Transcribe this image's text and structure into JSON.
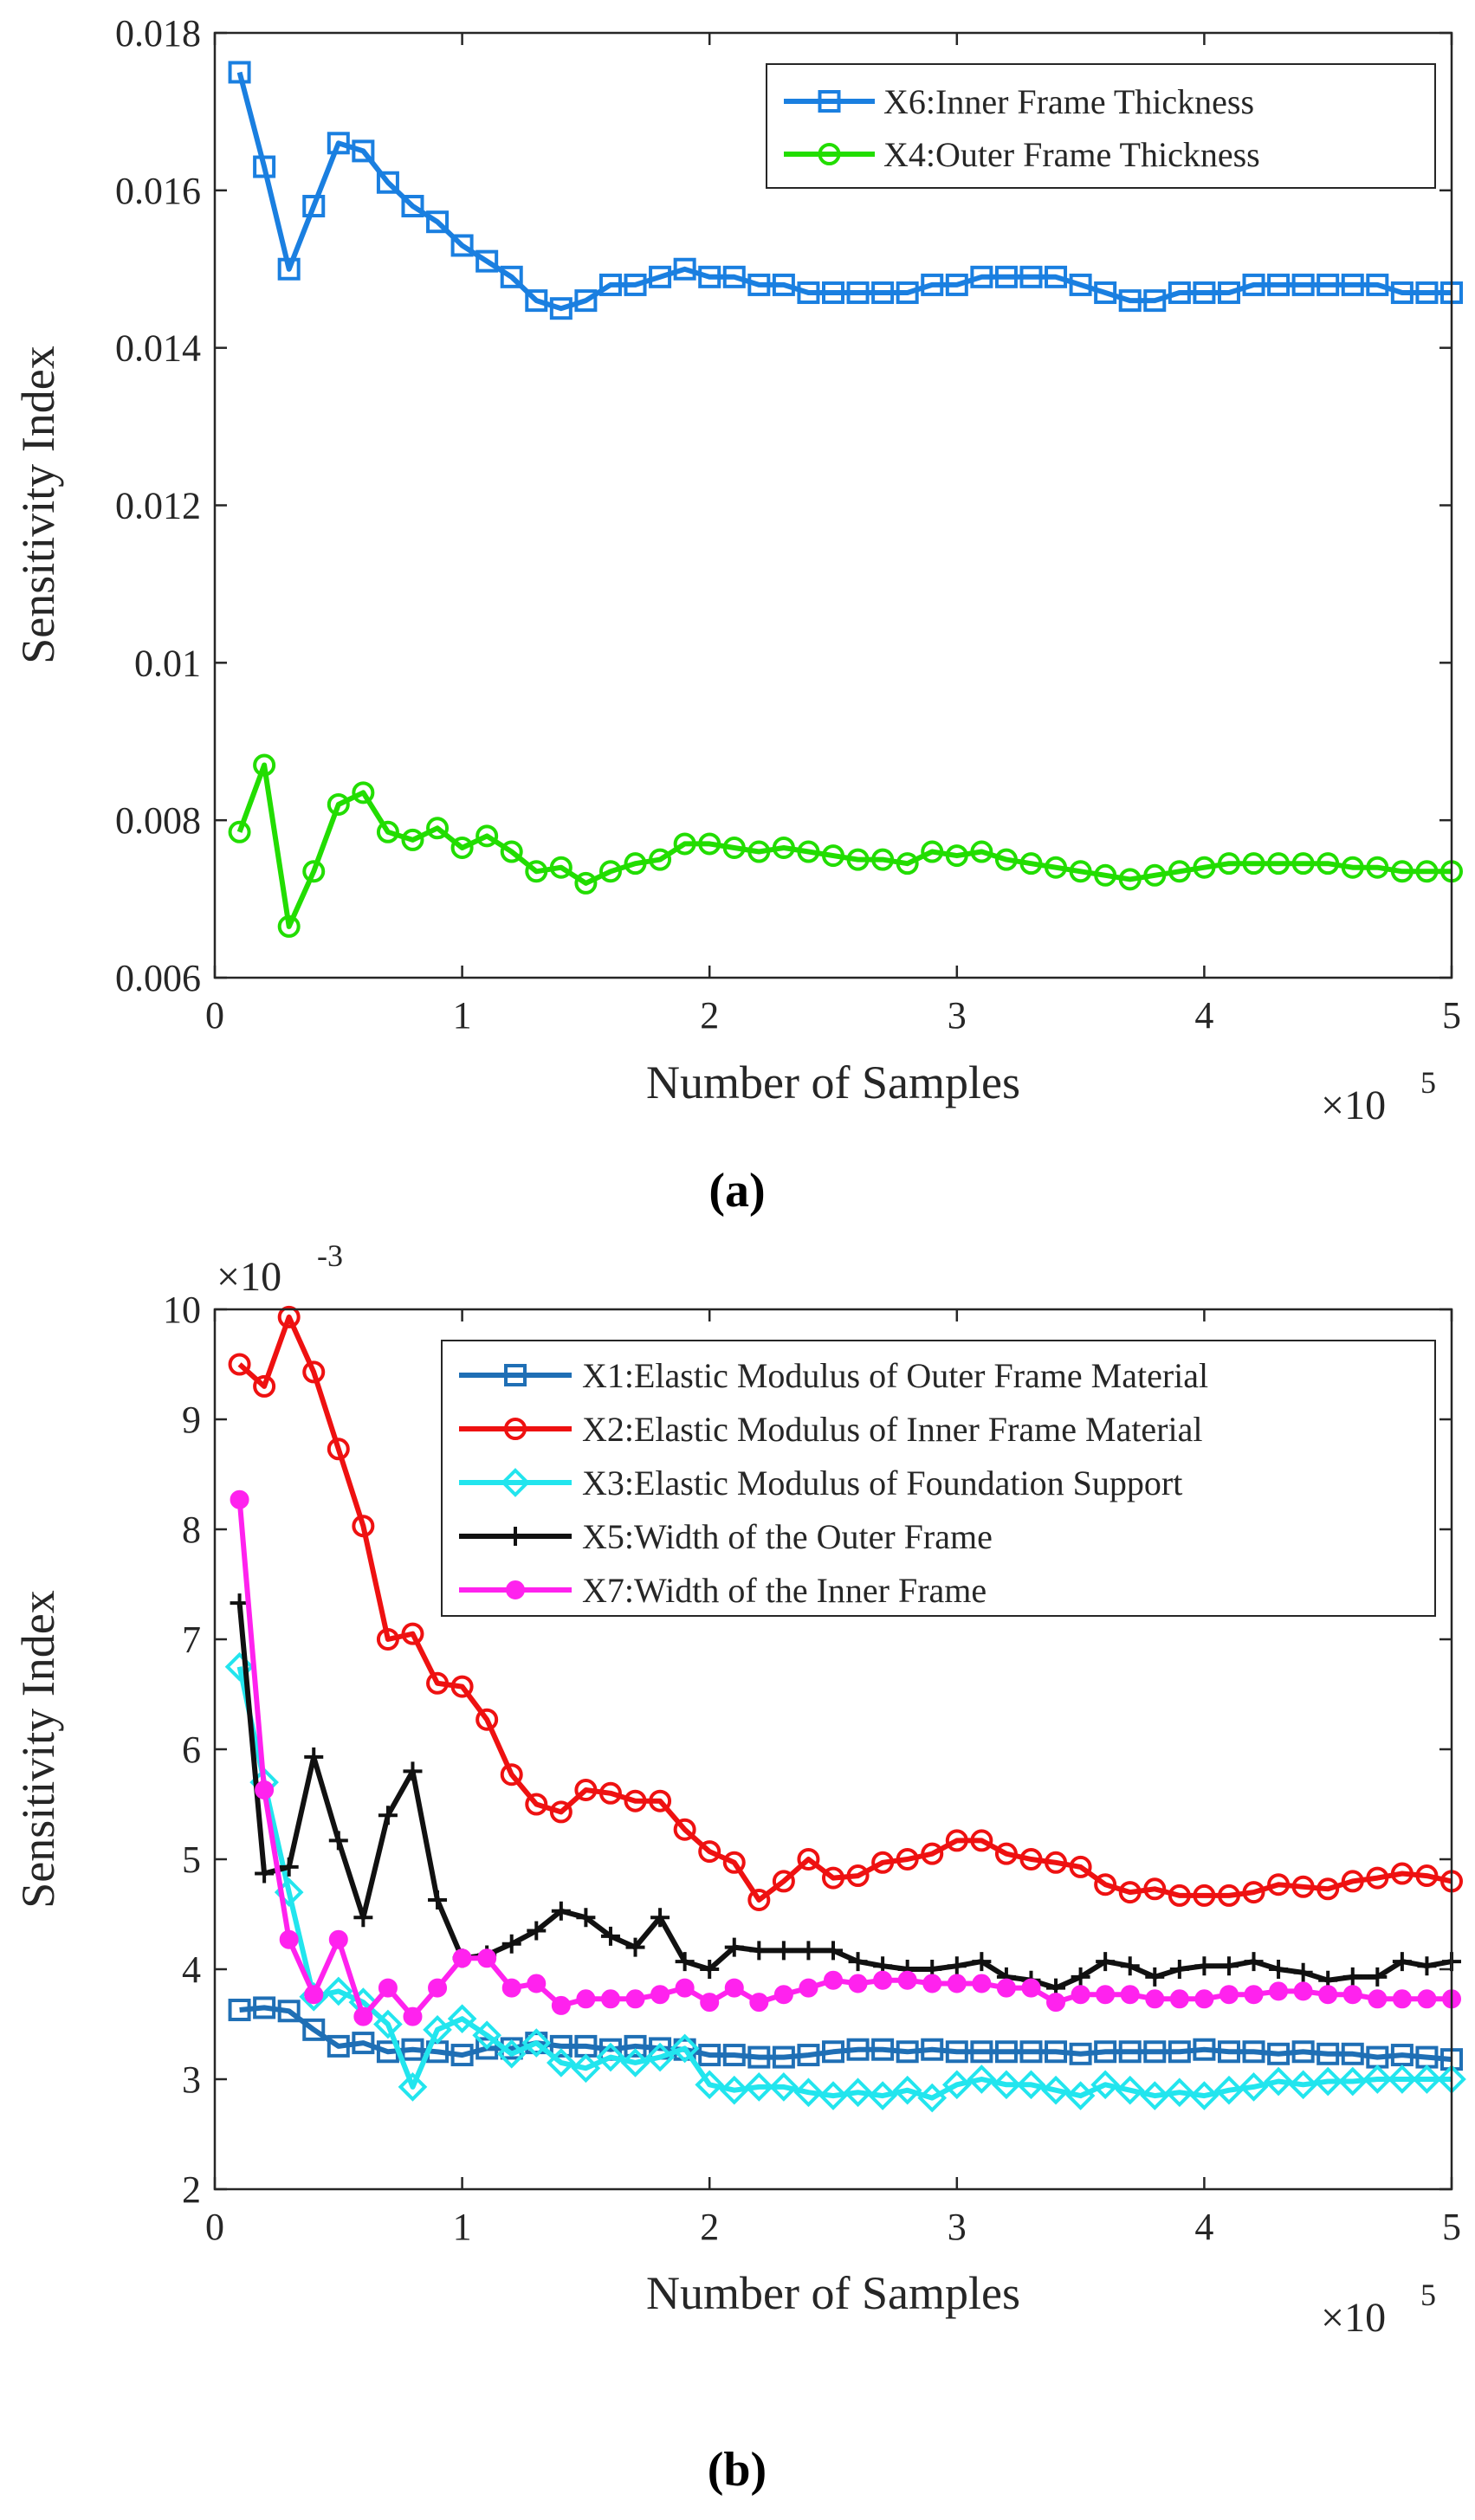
{
  "chart_data": [
    {
      "type": "line",
      "caption": "(a)",
      "xlabel": "Number of Samples",
      "ylabel": "Sensitivity Index",
      "xlim": [
        0,
        5
      ],
      "ylim": [
        0.006,
        0.018
      ],
      "x_multiplier": {
        "base": "×10",
        "exp": "5"
      },
      "xticks": [
        0,
        1,
        2,
        3,
        4,
        5
      ],
      "xtick_labels": [
        "0",
        "1",
        "2",
        "3",
        "4",
        "5"
      ],
      "yticks": [
        0.006,
        0.008,
        0.01,
        0.012,
        0.014,
        0.016,
        0.018
      ],
      "ytick_labels": [
        "0.006",
        "0.008",
        "0.01",
        "0.012",
        "0.014",
        "0.016",
        "0.018"
      ],
      "legend_position": "top-right",
      "x": [
        0.1,
        0.2,
        0.3,
        0.4,
        0.5,
        0.6,
        0.7,
        0.8,
        0.9,
        1.0,
        1.1,
        1.2,
        1.3,
        1.4,
        1.5,
        1.6,
        1.7,
        1.8,
        1.9,
        2.0,
        2.1,
        2.2,
        2.3,
        2.4,
        2.5,
        2.6,
        2.7,
        2.8,
        2.9,
        3.0,
        3.1,
        3.2,
        3.3,
        3.4,
        3.5,
        3.6,
        3.7,
        3.8,
        3.9,
        4.0,
        4.1,
        4.2,
        4.3,
        4.4,
        4.5,
        4.6,
        4.7,
        4.8,
        4.9,
        5.0
      ],
      "series": [
        {
          "name": "X6:Inner Frame Thickness",
          "color": "#1a7fe0",
          "marker": "square",
          "values": [
            0.0175,
            0.0163,
            0.015,
            0.0158,
            0.0166,
            0.0165,
            0.0161,
            0.0158,
            0.0156,
            0.0153,
            0.0151,
            0.0149,
            0.0146,
            0.0145,
            0.0146,
            0.0148,
            0.0148,
            0.0149,
            0.015,
            0.0149,
            0.0149,
            0.0148,
            0.0148,
            0.0147,
            0.0147,
            0.0147,
            0.0147,
            0.0147,
            0.0148,
            0.0148,
            0.0149,
            0.0149,
            0.0149,
            0.0149,
            0.0148,
            0.0147,
            0.0146,
            0.0146,
            0.0147,
            0.0147,
            0.0147,
            0.0148,
            0.0148,
            0.0148,
            0.0148,
            0.0148,
            0.0148,
            0.0147,
            0.0147,
            0.0147
          ]
        },
        {
          "name": "X4:Outer Frame Thickness",
          "color": "#22dd00",
          "marker": "circle",
          "values": [
            0.00785,
            0.0087,
            0.00665,
            0.00735,
            0.0082,
            0.00835,
            0.00785,
            0.00775,
            0.0079,
            0.00765,
            0.0078,
            0.0076,
            0.00735,
            0.0074,
            0.0072,
            0.00735,
            0.00745,
            0.0075,
            0.0077,
            0.0077,
            0.00765,
            0.0076,
            0.00765,
            0.0076,
            0.00755,
            0.0075,
            0.0075,
            0.00745,
            0.0076,
            0.00755,
            0.0076,
            0.0075,
            0.00745,
            0.0074,
            0.00735,
            0.0073,
            0.00725,
            0.0073,
            0.00735,
            0.0074,
            0.00745,
            0.00745,
            0.00745,
            0.00745,
            0.00745,
            0.0074,
            0.0074,
            0.00735,
            0.00735,
            0.00735
          ]
        }
      ]
    },
    {
      "type": "line",
      "caption": "(b)",
      "xlabel": "Number of Samples",
      "ylabel": "Sensitivity Index",
      "xlim": [
        0,
        5
      ],
      "ylim": [
        2,
        10
      ],
      "y_multiplier": {
        "base": "×10",
        "exp": "-3"
      },
      "x_multiplier": {
        "base": "×10",
        "exp": "5"
      },
      "xticks": [
        0,
        1,
        2,
        3,
        4,
        5
      ],
      "xtick_labels": [
        "0",
        "1",
        "2",
        "3",
        "4",
        "5"
      ],
      "yticks": [
        2,
        3,
        4,
        5,
        6,
        7,
        8,
        9,
        10
      ],
      "ytick_labels": [
        "2",
        "3",
        "4",
        "5",
        "6",
        "7",
        "8",
        "9",
        "10"
      ],
      "legend_position": "top-right",
      "x": [
        0.1,
        0.2,
        0.3,
        0.4,
        0.5,
        0.6,
        0.7,
        0.8,
        0.9,
        1.0,
        1.1,
        1.2,
        1.3,
        1.4,
        1.5,
        1.6,
        1.7,
        1.8,
        1.9,
        2.0,
        2.1,
        2.2,
        2.3,
        2.4,
        2.5,
        2.6,
        2.7,
        2.8,
        2.9,
        3.0,
        3.1,
        3.2,
        3.3,
        3.4,
        3.5,
        3.6,
        3.7,
        3.8,
        3.9,
        4.0,
        4.1,
        4.2,
        4.3,
        4.4,
        4.5,
        4.6,
        4.7,
        4.8,
        4.9,
        5.0
      ],
      "series": [
        {
          "name": "X1:Elastic Modulus of Outer Frame Material",
          "color": "#1f6fb5",
          "marker": "square",
          "values": [
            3.63,
            3.65,
            3.62,
            3.45,
            3.3,
            3.33,
            3.25,
            3.27,
            3.25,
            3.22,
            3.28,
            3.28,
            3.33,
            3.3,
            3.3,
            3.27,
            3.3,
            3.28,
            3.27,
            3.22,
            3.22,
            3.2,
            3.2,
            3.22,
            3.25,
            3.27,
            3.27,
            3.25,
            3.27,
            3.25,
            3.25,
            3.25,
            3.25,
            3.25,
            3.23,
            3.25,
            3.25,
            3.25,
            3.25,
            3.27,
            3.25,
            3.25,
            3.23,
            3.25,
            3.23,
            3.23,
            3.2,
            3.22,
            3.2,
            3.18
          ]
        },
        {
          "name": "X2:Elastic Modulus of Inner Frame Material",
          "color": "#ee1111",
          "marker": "circle",
          "values": [
            9.5,
            9.3,
            9.93,
            9.43,
            8.73,
            8.03,
            7.0,
            7.05,
            6.6,
            6.57,
            6.27,
            5.77,
            5.5,
            5.43,
            5.63,
            5.6,
            5.53,
            5.53,
            5.27,
            5.07,
            4.97,
            4.63,
            4.8,
            5.0,
            4.83,
            4.85,
            4.97,
            5.0,
            5.05,
            5.17,
            5.17,
            5.05,
            5.0,
            4.97,
            4.93,
            4.77,
            4.7,
            4.73,
            4.67,
            4.67,
            4.67,
            4.7,
            4.77,
            4.75,
            4.73,
            4.8,
            4.83,
            4.87,
            4.85,
            4.8
          ]
        },
        {
          "name": "X3:Elastic Modulus of Foundation Support",
          "color": "#22e5ee",
          "marker": "diamond",
          "values": [
            6.75,
            5.7,
            4.7,
            3.75,
            3.8,
            3.7,
            3.5,
            2.93,
            3.45,
            3.55,
            3.4,
            3.23,
            3.33,
            3.15,
            3.1,
            3.2,
            3.15,
            3.2,
            3.28,
            2.95,
            2.9,
            2.93,
            2.93,
            2.88,
            2.85,
            2.88,
            2.85,
            2.9,
            2.83,
            2.95,
            3.0,
            2.95,
            2.95,
            2.9,
            2.85,
            2.95,
            2.9,
            2.85,
            2.88,
            2.85,
            2.9,
            2.93,
            2.98,
            2.95,
            2.98,
            2.98,
            3.0,
            3.0,
            3.0,
            3.0
          ]
        },
        {
          "name": "X5:Width of the Outer Frame",
          "color": "#111111",
          "marker": "plus",
          "values": [
            7.33,
            4.87,
            4.93,
            5.93,
            5.17,
            4.47,
            5.4,
            5.8,
            4.63,
            4.1,
            4.13,
            4.23,
            4.35,
            4.53,
            4.47,
            4.3,
            4.2,
            4.47,
            4.07,
            4.0,
            4.2,
            4.17,
            4.17,
            4.17,
            4.17,
            4.07,
            4.03,
            4.0,
            4.0,
            4.03,
            4.07,
            3.93,
            3.9,
            3.83,
            3.93,
            4.07,
            4.03,
            3.93,
            4.0,
            4.03,
            4.03,
            4.07,
            4.0,
            3.97,
            3.9,
            3.93,
            3.93,
            4.07,
            4.03,
            4.07
          ]
        },
        {
          "name": "X7:Width of the Inner Frame",
          "color": "#ff22ee",
          "marker": "filled-circle",
          "values": [
            8.27,
            5.63,
            4.27,
            3.77,
            4.27,
            3.57,
            3.83,
            3.57,
            3.83,
            4.1,
            4.1,
            3.83,
            3.87,
            3.67,
            3.73,
            3.73,
            3.73,
            3.77,
            3.83,
            3.7,
            3.83,
            3.7,
            3.77,
            3.83,
            3.9,
            3.87,
            3.9,
            3.9,
            3.87,
            3.87,
            3.87,
            3.83,
            3.83,
            3.7,
            3.77,
            3.77,
            3.77,
            3.73,
            3.73,
            3.73,
            3.77,
            3.77,
            3.8,
            3.8,
            3.77,
            3.77,
            3.73,
            3.73,
            3.73,
            3.73
          ]
        }
      ]
    }
  ]
}
